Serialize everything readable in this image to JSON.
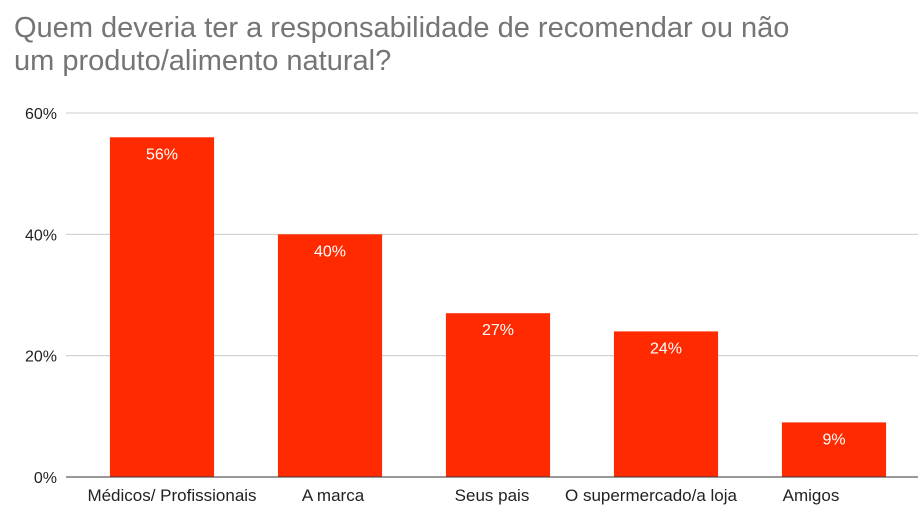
{
  "chart_data": {
    "type": "bar",
    "title_lines": [
      "Quem deveria ter a responsabilidade de recomendar ou não",
      "um produto/alimento natural?"
    ],
    "categories": [
      "Médicos/ Profissionais",
      "A marca",
      "Seus pais",
      "O supermercado/a loja",
      "Amigos"
    ],
    "values": [
      56,
      40,
      27,
      24,
      9
    ],
    "data_labels": [
      "56%",
      "40%",
      "27%",
      "24%",
      "9%"
    ],
    "yticks": [
      {
        "value": 0,
        "label": "0%"
      },
      {
        "value": 20,
        "label": "20%"
      },
      {
        "value": 40,
        "label": "40%"
      },
      {
        "value": 60,
        "label": "60%"
      }
    ],
    "ylim": [
      0,
      60
    ],
    "grid": true,
    "bar_color": "#ff2a00",
    "grid_color": "#cccccc",
    "axis_color": "#333333"
  }
}
